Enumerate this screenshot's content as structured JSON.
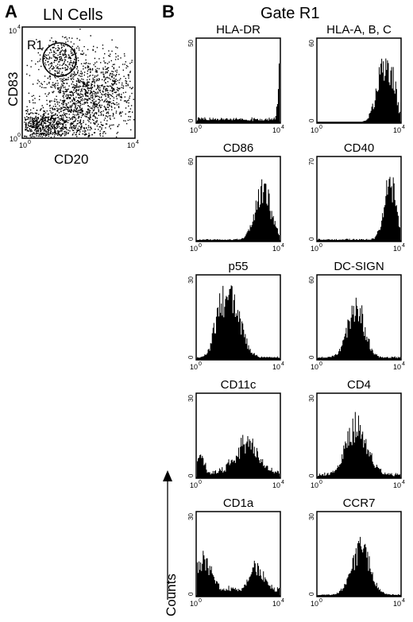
{
  "figure": {
    "panel_a_letter": "A",
    "panel_b_letter": "B",
    "panel_a_title": "LN Cells",
    "panel_b_title": "Gate R1",
    "counts_label": "Counts"
  },
  "chart_data": [
    {
      "type": "scatter",
      "title": "LN Cells",
      "xlabel": "CD20",
      "ylabel": "CD83",
      "x_scale": "log",
      "y_scale": "log",
      "xlim": [
        1,
        10000
      ],
      "ylim": [
        1,
        10000
      ],
      "gate": {
        "name": "R1"
      },
      "tick_labels": {
        "x_min": "0",
        "x_max": "4",
        "y_min": "0",
        "y_max": "4"
      }
    },
    {
      "type": "histogram",
      "title": "HLA-DR",
      "x_scale": "log",
      "xlim": [
        1,
        10000
      ],
      "ylim": [
        0,
        50
      ],
      "ytick_top": "50",
      "ytick_bottom": "0",
      "peak_log10": 4.0
    },
    {
      "type": "histogram",
      "title": "HLA-A, B, C",
      "x_scale": "log",
      "xlim": [
        1,
        10000
      ],
      "ylim": [
        0,
        60
      ],
      "ytick_top": "60",
      "ytick_bottom": "0",
      "peak_log10": 3.2
    },
    {
      "type": "histogram",
      "title": "CD86",
      "x_scale": "log",
      "xlim": [
        1,
        10000
      ],
      "ylim": [
        0,
        60
      ],
      "ytick_top": "60",
      "ytick_bottom": "0",
      "peak_log10": 3.2
    },
    {
      "type": "histogram",
      "title": "CD40",
      "x_scale": "log",
      "xlim": [
        1,
        10000
      ],
      "ylim": [
        0,
        70
      ],
      "ytick_top": "70",
      "ytick_bottom": "0",
      "peak_log10": 3.5
    },
    {
      "type": "histogram",
      "title": "p55",
      "x_scale": "log",
      "xlim": [
        1,
        10000
      ],
      "ylim": [
        0,
        30
      ],
      "ytick_top": "30",
      "ytick_bottom": "0",
      "peak_log10": 1.7
    },
    {
      "type": "histogram",
      "title": "DC-SIGN",
      "x_scale": "log",
      "xlim": [
        1,
        10000
      ],
      "ylim": [
        0,
        60
      ],
      "ytick_top": "60",
      "ytick_bottom": "0",
      "peak_log10": 1.8
    },
    {
      "type": "histogram",
      "title": "CD11c",
      "x_scale": "log",
      "xlim": [
        1,
        10000
      ],
      "ylim": [
        0,
        30
      ],
      "ytick_top": "30",
      "ytick_bottom": "0",
      "peak_log10": 2.4
    },
    {
      "type": "histogram",
      "title": "CD4",
      "x_scale": "log",
      "xlim": [
        1,
        10000
      ],
      "ylim": [
        0,
        30
      ],
      "ytick_top": "30",
      "ytick_bottom": "0",
      "peak_log10": 1.9
    },
    {
      "type": "histogram",
      "title": "CD1a",
      "x_scale": "log",
      "xlim": [
        1,
        10000
      ],
      "ylim": [
        0,
        30
      ],
      "ytick_top": "30",
      "ytick_bottom": "0",
      "peak_log10": 0.3
    },
    {
      "type": "histogram",
      "title": "CCR7",
      "x_scale": "log",
      "xlim": [
        1,
        10000
      ],
      "ylim": [
        0,
        30
      ],
      "ytick_top": "30",
      "ytick_bottom": "0",
      "peak_log10": 2.1
    }
  ]
}
